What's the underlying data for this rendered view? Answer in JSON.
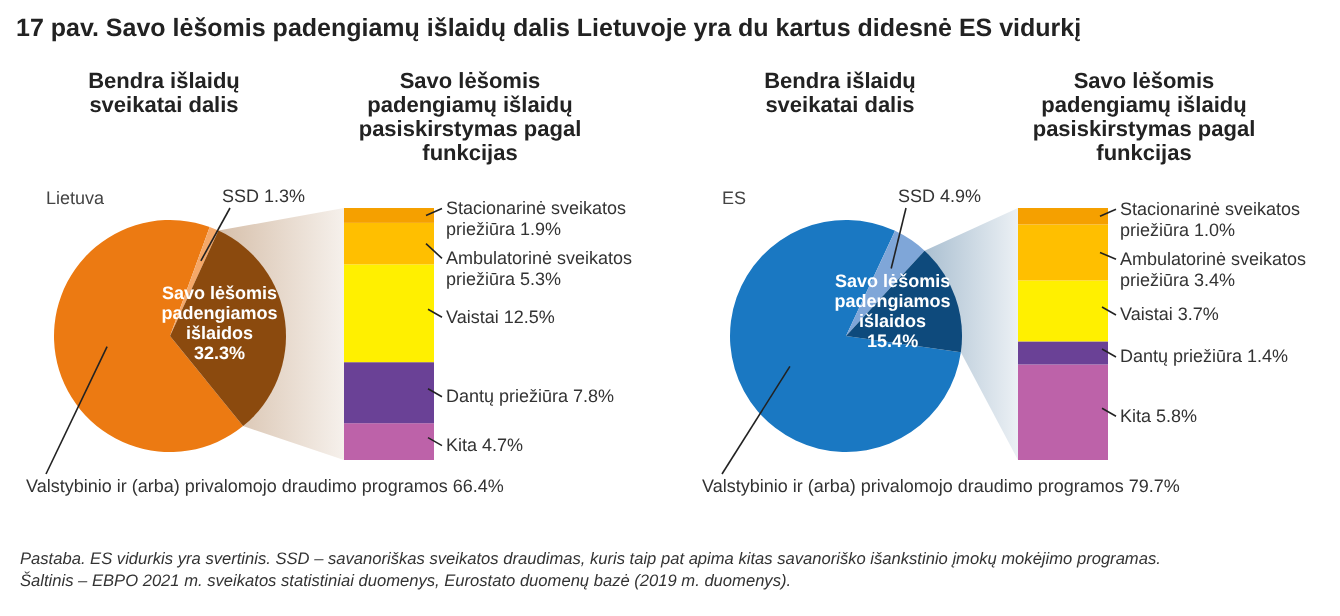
{
  "chart_data": [
    {
      "type": "pie",
      "title": "Bendra išlaidų sveikatai dalis",
      "subtitle": "Lietuva",
      "categories": [
        "Valstybinio ir (arba) privalomojo draudimo programos",
        "SSD",
        "Savo lėšomis padengiamos išlaidos"
      ],
      "values": [
        66.4,
        1.3,
        32.3
      ],
      "value_labels": [
        "66.4%",
        "1.3%",
        "32.3%"
      ],
      "colors": [
        "#ec7a12",
        "#f5a868",
        "#8b4a0e"
      ],
      "annotations": [
        "17 pav. Savo lėšomis padengiamų išlaidų dalis Lietuvoje yra du kartus didesnė ES vidurkį",
        "Pastaba. ES vidurkis yra svertinis. SSD – savanoriškas sveikatos draudimas, kuris taip pat apima kitas savanoriško išankstinio įmokų mokėjimo programas.",
        "Šaltinis – EBPO 2021 m. sveikatos statistiniai duomenys, Eurostato duomenų bazė (2019 m. duomenys)."
      ]
    },
    {
      "type": "bar",
      "stacked": true,
      "title": "Savo lėšomis padengiamų išlaidų pasiskirstymas pagal funkcijas",
      "categories": [
        null
      ],
      "series": [
        {
          "color": "#bd62a9",
          "values": [
            4.7
          ],
          "value_labels": [
            "Kita 4.7%"
          ]
        },
        {
          "color": "#6a4196",
          "values": [
            7.8
          ],
          "value_labels": [
            "Dantų priežiūra 7.8%"
          ]
        },
        {
          "color": "#fff000",
          "values": [
            12.5
          ],
          "value_labels": [
            "Vaistai 12.5%"
          ]
        },
        {
          "color": "#ffbf00",
          "values": [
            5.3
          ],
          "value_labels": [
            "Ambulatorinė sveikatos priežiūra 5.3%"
          ]
        },
        {
          "color": "#f5a000",
          "values": [
            1.9
          ],
          "value_labels": [
            "Stacionarinė sveikatos priežiūra 1.9%"
          ]
        }
      ]
    },
    {
      "type": "pie",
      "title": "Bendra išlaidų sveikatai dalis",
      "subtitle": "ES",
      "categories": [
        "Valstybinio ir (arba) privalomojo draudimo programos",
        "SSD",
        "Savo lėšomis padengiamos išlaidos"
      ],
      "values": [
        79.7,
        4.9,
        15.4
      ],
      "value_labels": [
        "79.7%",
        "4.9%",
        "15.4%"
      ],
      "colors": [
        "#1a78c2",
        "#7fa6d8",
        "#0e4a7c"
      ]
    },
    {
      "type": "bar",
      "stacked": true,
      "title": "Savo lėšomis padengiamų išlaidų pasiskirstymas pagal funkcijas",
      "categories": [
        null
      ],
      "series": [
        {
          "color": "#bd62a9",
          "values": [
            5.8
          ],
          "value_labels": [
            "Kita 5.8%"
          ]
        },
        {
          "color": "#6a4196",
          "values": [
            1.4
          ],
          "value_labels": [
            "Dantų priežiūra 1.4%"
          ]
        },
        {
          "color": "#fff000",
          "values": [
            3.7
          ],
          "value_labels": [
            "Vaistai 3.7%"
          ]
        },
        {
          "color": "#ffbf00",
          "values": [
            3.4
          ],
          "value_labels": [
            "Ambulatorinė sveikatos priežiūra 3.4%"
          ]
        },
        {
          "color": "#f5a000",
          "values": [
            1.0
          ],
          "value_labels": [
            "Stacionarinė sveikatos priežiūra 1.0%"
          ]
        }
      ]
    }
  ]
}
